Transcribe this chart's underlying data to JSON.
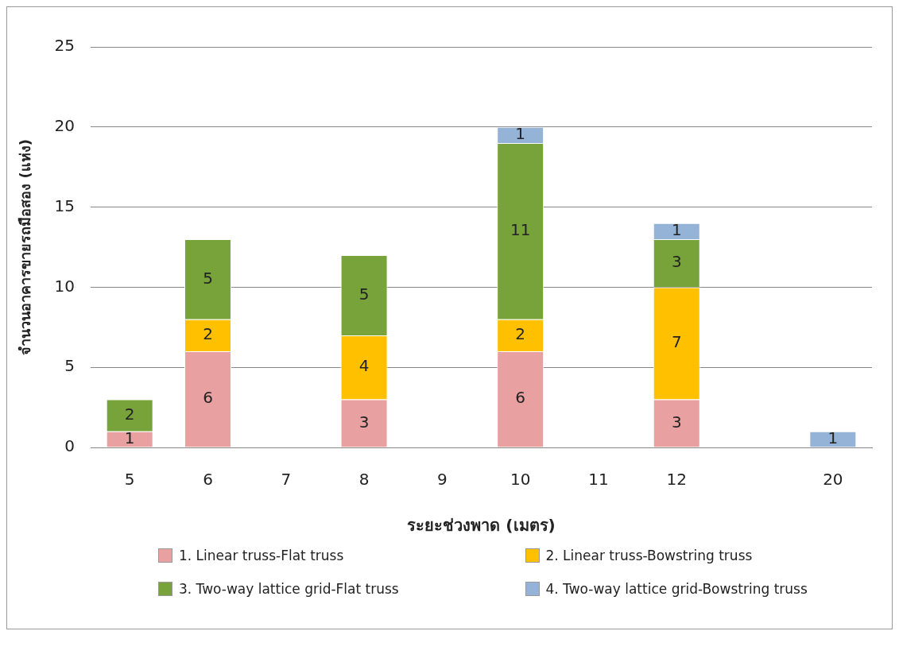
{
  "chart_data": {
    "type": "bar",
    "stacked": true,
    "xlabel": "ระยะช่วงพาด (เมตร)",
    "ylabel": "จำนวนอาคารขายรถมือสอง (แห่ง)",
    "categories": [
      "5",
      "6",
      "7",
      "8",
      "9",
      "10",
      "11",
      "12",
      null,
      "20"
    ],
    "series": [
      {
        "name": "1. Linear truss-Flat truss",
        "color": "#e8a0a0",
        "values": [
          1,
          6,
          null,
          3,
          null,
          6,
          null,
          3,
          null,
          null
        ]
      },
      {
        "name": "2. Linear truss-Bowstring truss",
        "color": "#ffc000",
        "values": [
          null,
          2,
          null,
          4,
          null,
          2,
          null,
          7,
          null,
          null
        ]
      },
      {
        "name": "3. Two-way lattice grid-Flat truss",
        "color": "#77a33a",
        "values": [
          2,
          5,
          null,
          5,
          null,
          11,
          null,
          3,
          null,
          null
        ]
      },
      {
        "name": "4. Two-way lattice grid-Bowstring truss",
        "color": "#95b3d7",
        "values": [
          null,
          null,
          null,
          null,
          null,
          1,
          null,
          1,
          null,
          1
        ]
      }
    ],
    "ylim": [
      0,
      25
    ],
    "yticks": [
      0,
      5,
      10,
      15,
      20,
      25
    ],
    "grid": "y",
    "legend": "bottom",
    "data_labels": true
  }
}
